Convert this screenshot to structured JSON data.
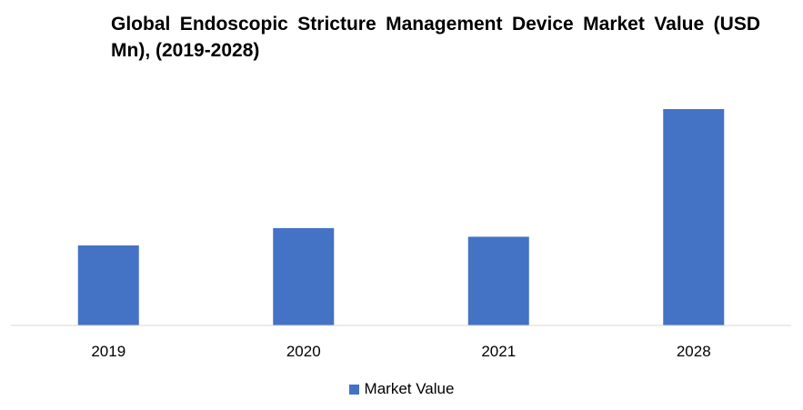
{
  "chart_data": {
    "type": "bar",
    "title": "Global Endoscopic Stricture Management Device Market Value (USD Mn), (2019-2028)",
    "categories": [
      "2019",
      "2020",
      "2021",
      "2028"
    ],
    "series": [
      {
        "name": "Market Value",
        "values": [
          37,
          45,
          41,
          100
        ],
        "color": "#4472C4"
      }
    ],
    "ylim": [
      0,
      100
    ],
    "grid": false,
    "legend_position": "bottom"
  }
}
